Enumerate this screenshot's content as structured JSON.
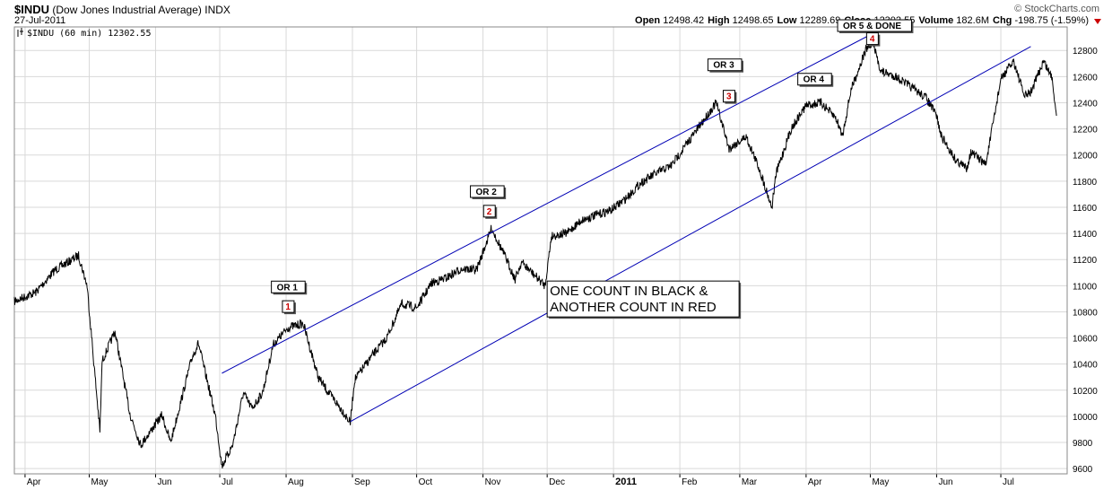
{
  "header": {
    "symbol": "$INDU",
    "name": "(Dow Jones Industrial Average)",
    "exchange": "INDX",
    "date": "27-Jul-2011",
    "brand": "© StockCharts.com",
    "stats": [
      {
        "label": "Open",
        "value": "12498.42"
      },
      {
        "label": "High",
        "value": "12498.65"
      },
      {
        "label": "Low",
        "value": "12289.69"
      },
      {
        "label": "Close",
        "value": "12302.55"
      },
      {
        "label": "Volume",
        "value": "182.6M"
      },
      {
        "label": "Chg",
        "value": "-198.75 (-1.59%)"
      }
    ]
  },
  "colors": {
    "price": "#000000",
    "channel": "#0000b4",
    "grid": "#d9d9d9",
    "red_count": "#cc0000",
    "arrow": "#cc0000"
  },
  "chart_data": {
    "type": "line",
    "title": "$INDU (Dow Jones Industrial Average) INDX",
    "legend": "$INDU (60 min) 12302.55",
    "interval": "60 min",
    "x_tick_labels": [
      "Apr",
      "May",
      "Jun",
      "Jul",
      "Aug",
      "Sep",
      "Oct",
      "Nov",
      "Dec",
      "2011",
      "Feb",
      "Mar",
      "Apr",
      "May",
      "Jun",
      "Jul"
    ],
    "x_tick_dates": [
      "2010-04-01",
      "2010-05-01",
      "2010-06-01",
      "2010-07-01",
      "2010-08-01",
      "2010-09-01",
      "2010-10-01",
      "2010-11-01",
      "2010-12-01",
      "2011-01-01",
      "2011-02-01",
      "2011-03-01",
      "2011-04-01",
      "2011-05-01",
      "2011-06-01",
      "2011-07-01"
    ],
    "x_range": [
      "2010-03-27",
      "2011-08-01"
    ],
    "y_ticks": [
      9600,
      9800,
      10000,
      10200,
      10400,
      10600,
      10800,
      11000,
      11200,
      11400,
      11600,
      11800,
      12000,
      12200,
      12400,
      12600,
      12800
    ],
    "ylim": [
      9560,
      12980
    ],
    "grid": true,
    "y_axis_side": "right",
    "series": [
      {
        "type": "line",
        "values": [
          [
            "2010-03-27",
            10880
          ],
          [
            "2010-04-06",
            10950
          ],
          [
            "2010-04-15",
            11120
          ],
          [
            "2010-04-26",
            11230
          ],
          [
            "2010-04-30",
            11000
          ],
          [
            "2010-05-06",
            9880
          ],
          [
            "2010-05-07",
            10420
          ],
          [
            "2010-05-13",
            10650
          ],
          [
            "2010-05-20",
            10020
          ],
          [
            "2010-05-25",
            9780
          ],
          [
            "2010-06-04",
            10010
          ],
          [
            "2010-06-08",
            9800
          ],
          [
            "2010-06-18",
            10450
          ],
          [
            "2010-06-21",
            10560
          ],
          [
            "2010-06-29",
            10000
          ],
          [
            "2010-07-02",
            9620
          ],
          [
            "2010-07-07",
            9780
          ],
          [
            "2010-07-12",
            10180
          ],
          [
            "2010-07-16",
            10060
          ],
          [
            "2010-07-21",
            10180
          ],
          [
            "2010-07-26",
            10550
          ],
          [
            "2010-08-02",
            10680
          ],
          [
            "2010-08-09",
            10710
          ],
          [
            "2010-08-16",
            10300
          ],
          [
            "2010-08-20",
            10200
          ],
          [
            "2010-08-27",
            10050
          ],
          [
            "2010-08-31",
            9950
          ],
          [
            "2010-09-02",
            10280
          ],
          [
            "2010-09-10",
            10460
          ],
          [
            "2010-09-17",
            10600
          ],
          [
            "2010-09-24",
            10860
          ],
          [
            "2010-10-01",
            10830
          ],
          [
            "2010-10-08",
            11020
          ],
          [
            "2010-10-15",
            11060
          ],
          [
            "2010-10-22",
            11130
          ],
          [
            "2010-10-29",
            11120
          ],
          [
            "2010-11-05",
            11440
          ],
          [
            "2010-11-12",
            11200
          ],
          [
            "2010-11-16",
            11050
          ],
          [
            "2010-11-19",
            11180
          ],
          [
            "2010-11-30",
            11000
          ],
          [
            "2010-12-03",
            11380
          ],
          [
            "2010-12-10",
            11400
          ],
          [
            "2010-12-17",
            11500
          ],
          [
            "2010-12-31",
            11580
          ],
          [
            "2011-01-07",
            11670
          ],
          [
            "2011-01-14",
            11790
          ],
          [
            "2011-01-21",
            11860
          ],
          [
            "2011-01-28",
            11920
          ],
          [
            "2011-02-04",
            12080
          ],
          [
            "2011-02-11",
            12240
          ],
          [
            "2011-02-18",
            12400
          ],
          [
            "2011-02-24",
            12050
          ],
          [
            "2011-03-04",
            12140
          ],
          [
            "2011-03-10",
            11900
          ],
          [
            "2011-03-16",
            11600
          ],
          [
            "2011-03-18",
            11860
          ],
          [
            "2011-03-25",
            12200
          ],
          [
            "2011-04-01",
            12380
          ],
          [
            "2011-04-08",
            12400
          ],
          [
            "2011-04-15",
            12280
          ],
          [
            "2011-04-18",
            12150
          ],
          [
            "2011-04-22",
            12500
          ],
          [
            "2011-04-29",
            12810
          ],
          [
            "2011-05-02",
            12860
          ],
          [
            "2011-05-06",
            12640
          ],
          [
            "2011-05-13",
            12600
          ],
          [
            "2011-05-20",
            12520
          ],
          [
            "2011-05-27",
            12440
          ],
          [
            "2011-06-01",
            12300
          ],
          [
            "2011-06-03",
            12150
          ],
          [
            "2011-06-10",
            11960
          ],
          [
            "2011-06-15",
            11900
          ],
          [
            "2011-06-17",
            12020
          ],
          [
            "2011-06-24",
            11930
          ],
          [
            "2011-07-01",
            12580
          ],
          [
            "2011-07-07",
            12720
          ],
          [
            "2011-07-12",
            12450
          ],
          [
            "2011-07-15",
            12480
          ],
          [
            "2011-07-21",
            12720
          ],
          [
            "2011-07-25",
            12590
          ],
          [
            "2011-07-27",
            12300
          ]
        ]
      }
    ],
    "channel_lines": [
      {
        "from": [
          "2010-07-02",
          10330
        ],
        "to": [
          "2011-05-08",
          12980
        ]
      },
      {
        "from": [
          "2010-08-31",
          9960
        ],
        "to": [
          "2011-07-15",
          12830
        ]
      }
    ],
    "black_labels": [
      {
        "text": "OR 1",
        "date": "2010-08-02",
        "price": 10990
      },
      {
        "text": "OR 2",
        "date": "2010-11-03",
        "price": 11720
      },
      {
        "text": "OR 3",
        "date": "2011-02-22",
        "price": 12690
      },
      {
        "text": "OR 4",
        "date": "2011-04-05",
        "price": 12580
      },
      {
        "text": "OR 5 & DONE",
        "date": "2011-05-03",
        "price": 12990
      }
    ],
    "red_labels": [
      {
        "text": "1",
        "date": "2010-08-02",
        "price": 10840
      },
      {
        "text": "2",
        "date": "2010-11-04",
        "price": 11570
      },
      {
        "text": "3",
        "date": "2011-02-24",
        "price": 12450
      },
      {
        "text": "4",
        "date": "2011-05-02",
        "price": 12890
      }
    ],
    "annotation": {
      "lines": [
        "ONE COUNT IN BLACK &",
        "ANOTHER COUNT IN RED"
      ],
      "date": "2011-01-14",
      "price": 10850
    }
  }
}
